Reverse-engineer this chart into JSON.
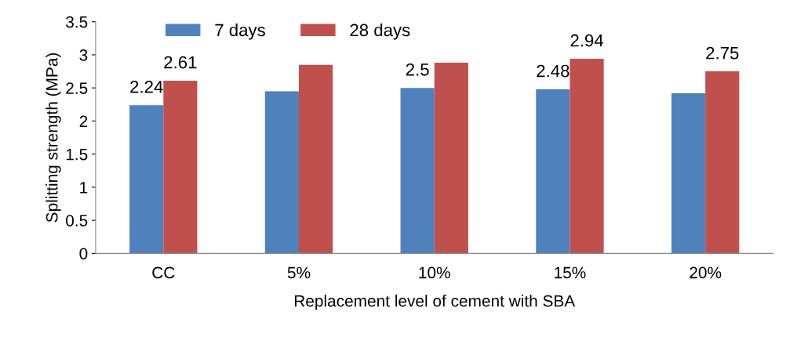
{
  "chart_data": {
    "type": "bar",
    "xlabel": "Replacement level of cement with SBA",
    "ylabel": "Splitting strength (MPa)",
    "categories": [
      "CC",
      "5%",
      "10%",
      "15%",
      "20%"
    ],
    "series": [
      {
        "name": "7 days",
        "color": "#4f81bd",
        "values": [
          2.24,
          2.45,
          2.5,
          2.48,
          2.42
        ],
        "value_labels": [
          "2.24",
          null,
          "2.5",
          "2.48",
          null
        ]
      },
      {
        "name": "28 days",
        "color": "#c0504d",
        "values": [
          2.61,
          2.85,
          2.88,
          2.94,
          2.75
        ],
        "value_labels": [
          "2.61",
          null,
          null,
          "2.94",
          "2.75"
        ]
      }
    ],
    "ylim": [
      0,
      3.5
    ],
    "yticks": [
      0,
      0.5,
      1,
      1.5,
      2,
      2.5,
      3,
      3.5
    ],
    "grid": false,
    "legend": "top left"
  }
}
